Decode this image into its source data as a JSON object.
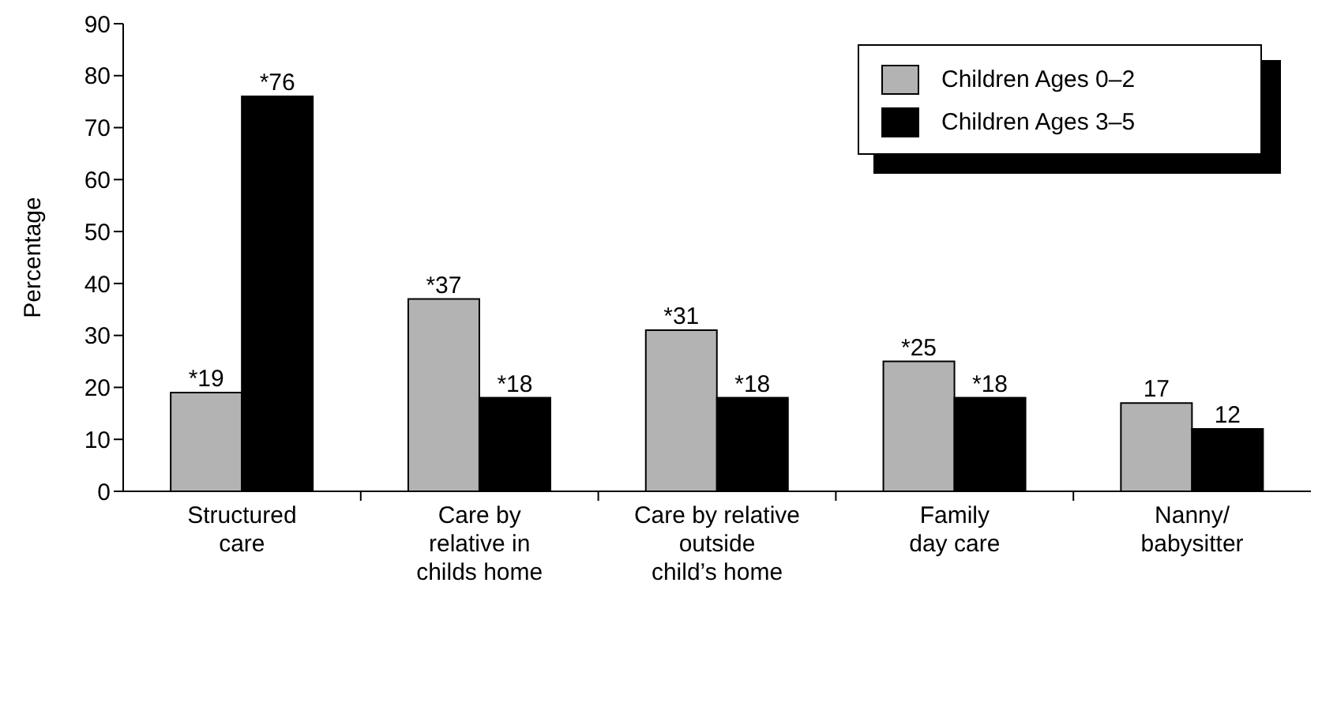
{
  "chart_data": {
    "type": "bar",
    "ylabel": "Percentage",
    "categories": [
      "Structured\ncare",
      "Care by\nrelative in\nchilds home",
      "Care by relative\noutside\nchild’s home",
      "Family\nday care",
      "Nanny/\nbabysitter"
    ],
    "series": [
      {
        "name": "Children Ages 0–2",
        "color": "#b3b3b3",
        "values": [
          19,
          37,
          31,
          25,
          17
        ],
        "value_labels": [
          "*19",
          "*37",
          "*31",
          "*25",
          "17"
        ]
      },
      {
        "name": "Children Ages 3–5",
        "color": "#000000",
        "values": [
          76,
          18,
          18,
          18,
          12
        ],
        "value_labels": [
          "*76",
          "*18",
          "*18",
          "*18",
          "12"
        ]
      }
    ],
    "ylim": [
      0,
      90
    ],
    "yticks": [
      0,
      10,
      20,
      30,
      40,
      50,
      60,
      70,
      80,
      90
    ],
    "grid": false,
    "legend": "top right"
  }
}
